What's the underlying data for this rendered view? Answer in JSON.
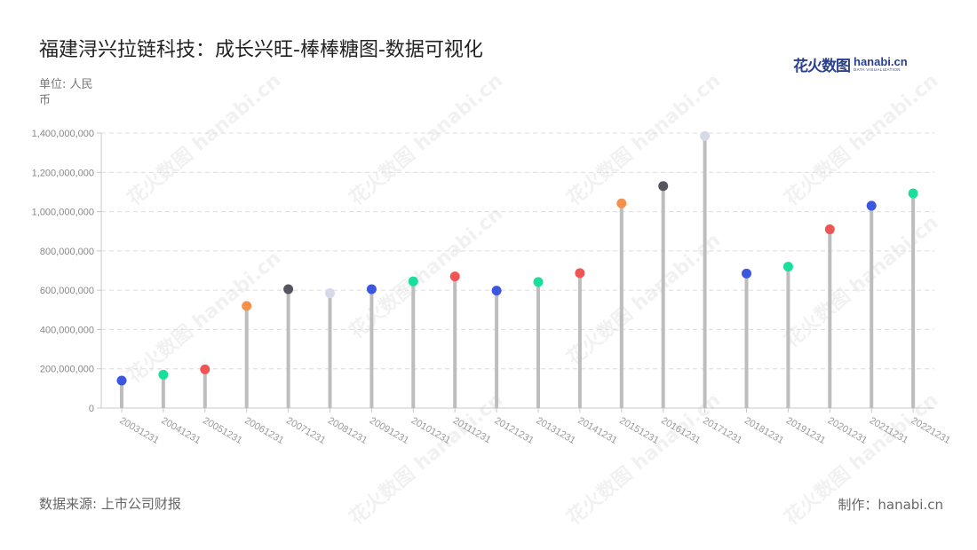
{
  "title": "福建浔兴拉链科技：成长兴旺-棒棒糖图-数据可视化",
  "unit_label": "单位: 人民币",
  "source_label": "数据来源: 上市公司财报",
  "maker_label": "制作：hanabi.cn",
  "logo": {
    "cn_text": "花火数图",
    "en_text": "hanabi.cn",
    "en_sub": "DATA VISUALIZATION"
  },
  "watermark_text": "花火数图 hanabi.cn",
  "chart_data": {
    "type": "lollipop",
    "categories": [
      "20031231",
      "20041231",
      "20051231",
      "20061231",
      "20071231",
      "20081231",
      "20091231",
      "20101231",
      "20111231",
      "20121231",
      "20131231",
      "20141231",
      "20151231",
      "20161231",
      "20171231",
      "20181231",
      "20191231",
      "20201231",
      "20211231",
      "20221231"
    ],
    "values": [
      140000000,
      170000000,
      197000000,
      520000000,
      605000000,
      585000000,
      605000000,
      645000000,
      670000000,
      598000000,
      642000000,
      687000000,
      1042000000,
      1130000000,
      1385000000,
      685000000,
      720000000,
      910000000,
      1030000000,
      1093000000
    ],
    "dot_colors": [
      "#3b56e0",
      "#1adf9a",
      "#f05454",
      "#f5914a",
      "#555560",
      "#d6d9e8",
      "#3b56e0",
      "#1adf9a",
      "#f05454",
      "#3b56e0",
      "#1adf9a",
      "#f05454",
      "#f5914a",
      "#555560",
      "#d6d9e8",
      "#3b56e0",
      "#1adf9a",
      "#f05454",
      "#3b56e0",
      "#1adf9a"
    ],
    "stem_color": "#bdbdbd",
    "y_ticks": [
      "0",
      "200,000,000",
      "400,000,000",
      "600,000,000",
      "800,000,000",
      "1,000,000,000",
      "1,200,000,000",
      "1,400,000,000"
    ],
    "y_tick_values": [
      0,
      200000000,
      400000000,
      600000000,
      800000000,
      1000000000,
      1200000000,
      1400000000
    ],
    "ylim": [
      0,
      1400000000
    ],
    "grid": true
  }
}
